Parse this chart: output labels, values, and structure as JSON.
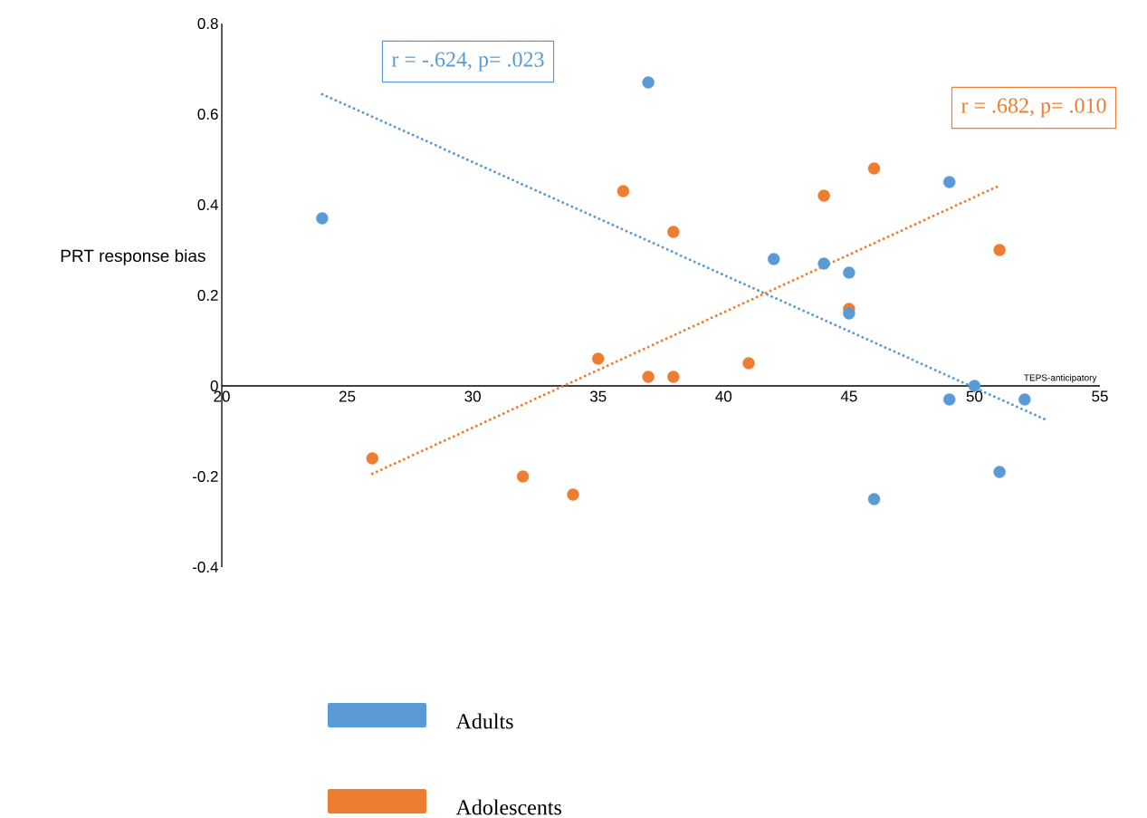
{
  "chart_data": {
    "type": "scatter",
    "xlabel": "TEPS-anticipatory",
    "ylabel": "PRT response bias",
    "xlim": [
      20,
      55
    ],
    "xticks": [
      20,
      25,
      30,
      35,
      40,
      45,
      50,
      55
    ],
    "ylim": [
      -0.4,
      0.8
    ],
    "yticks": [
      -0.4,
      -0.2,
      0,
      0.2,
      0.4,
      0.6,
      0.8
    ],
    "grid": false,
    "legend": "bottom",
    "marker": "circle",
    "annotations": [
      "r = -.624, p= .023",
      "r = .682, p= .010"
    ],
    "series": [
      {
        "name": "Adults",
        "color": "#5b9bd5",
        "x": [
          24,
          37,
          42,
          44,
          45,
          45,
          49,
          49,
          50,
          52,
          51,
          46
        ],
        "values": [
          0.37,
          0.67,
          0.28,
          0.27,
          0.25,
          0.16,
          0.45,
          -0.03,
          0,
          -0.03,
          -0.19,
          -0.25
        ]
      },
      {
        "name": "Adolescents",
        "color": "#ed7d31",
        "x": [
          26,
          32,
          34,
          35,
          36,
          37,
          38,
          38,
          41,
          44,
          45,
          46,
          51
        ],
        "values": [
          -0.16,
          -0.2,
          -0.24,
          0.06,
          0.43,
          0.02,
          0.02,
          0.34,
          0.05,
          0.42,
          0.17,
          0.48,
          0.3
        ]
      },
      {
        "type": "line",
        "color": "#5b9bd5",
        "marker": "none",
        "line_style": "dotted",
        "x": [
          24,
          52.9
        ],
        "values": [
          0.644,
          -0.076
        ]
      },
      {
        "type": "line",
        "color": "#ed7d31",
        "marker": "none",
        "line_style": "dotted",
        "x": [
          26,
          50.9
        ],
        "values": [
          -0.194,
          0.44
        ]
      }
    ]
  }
}
